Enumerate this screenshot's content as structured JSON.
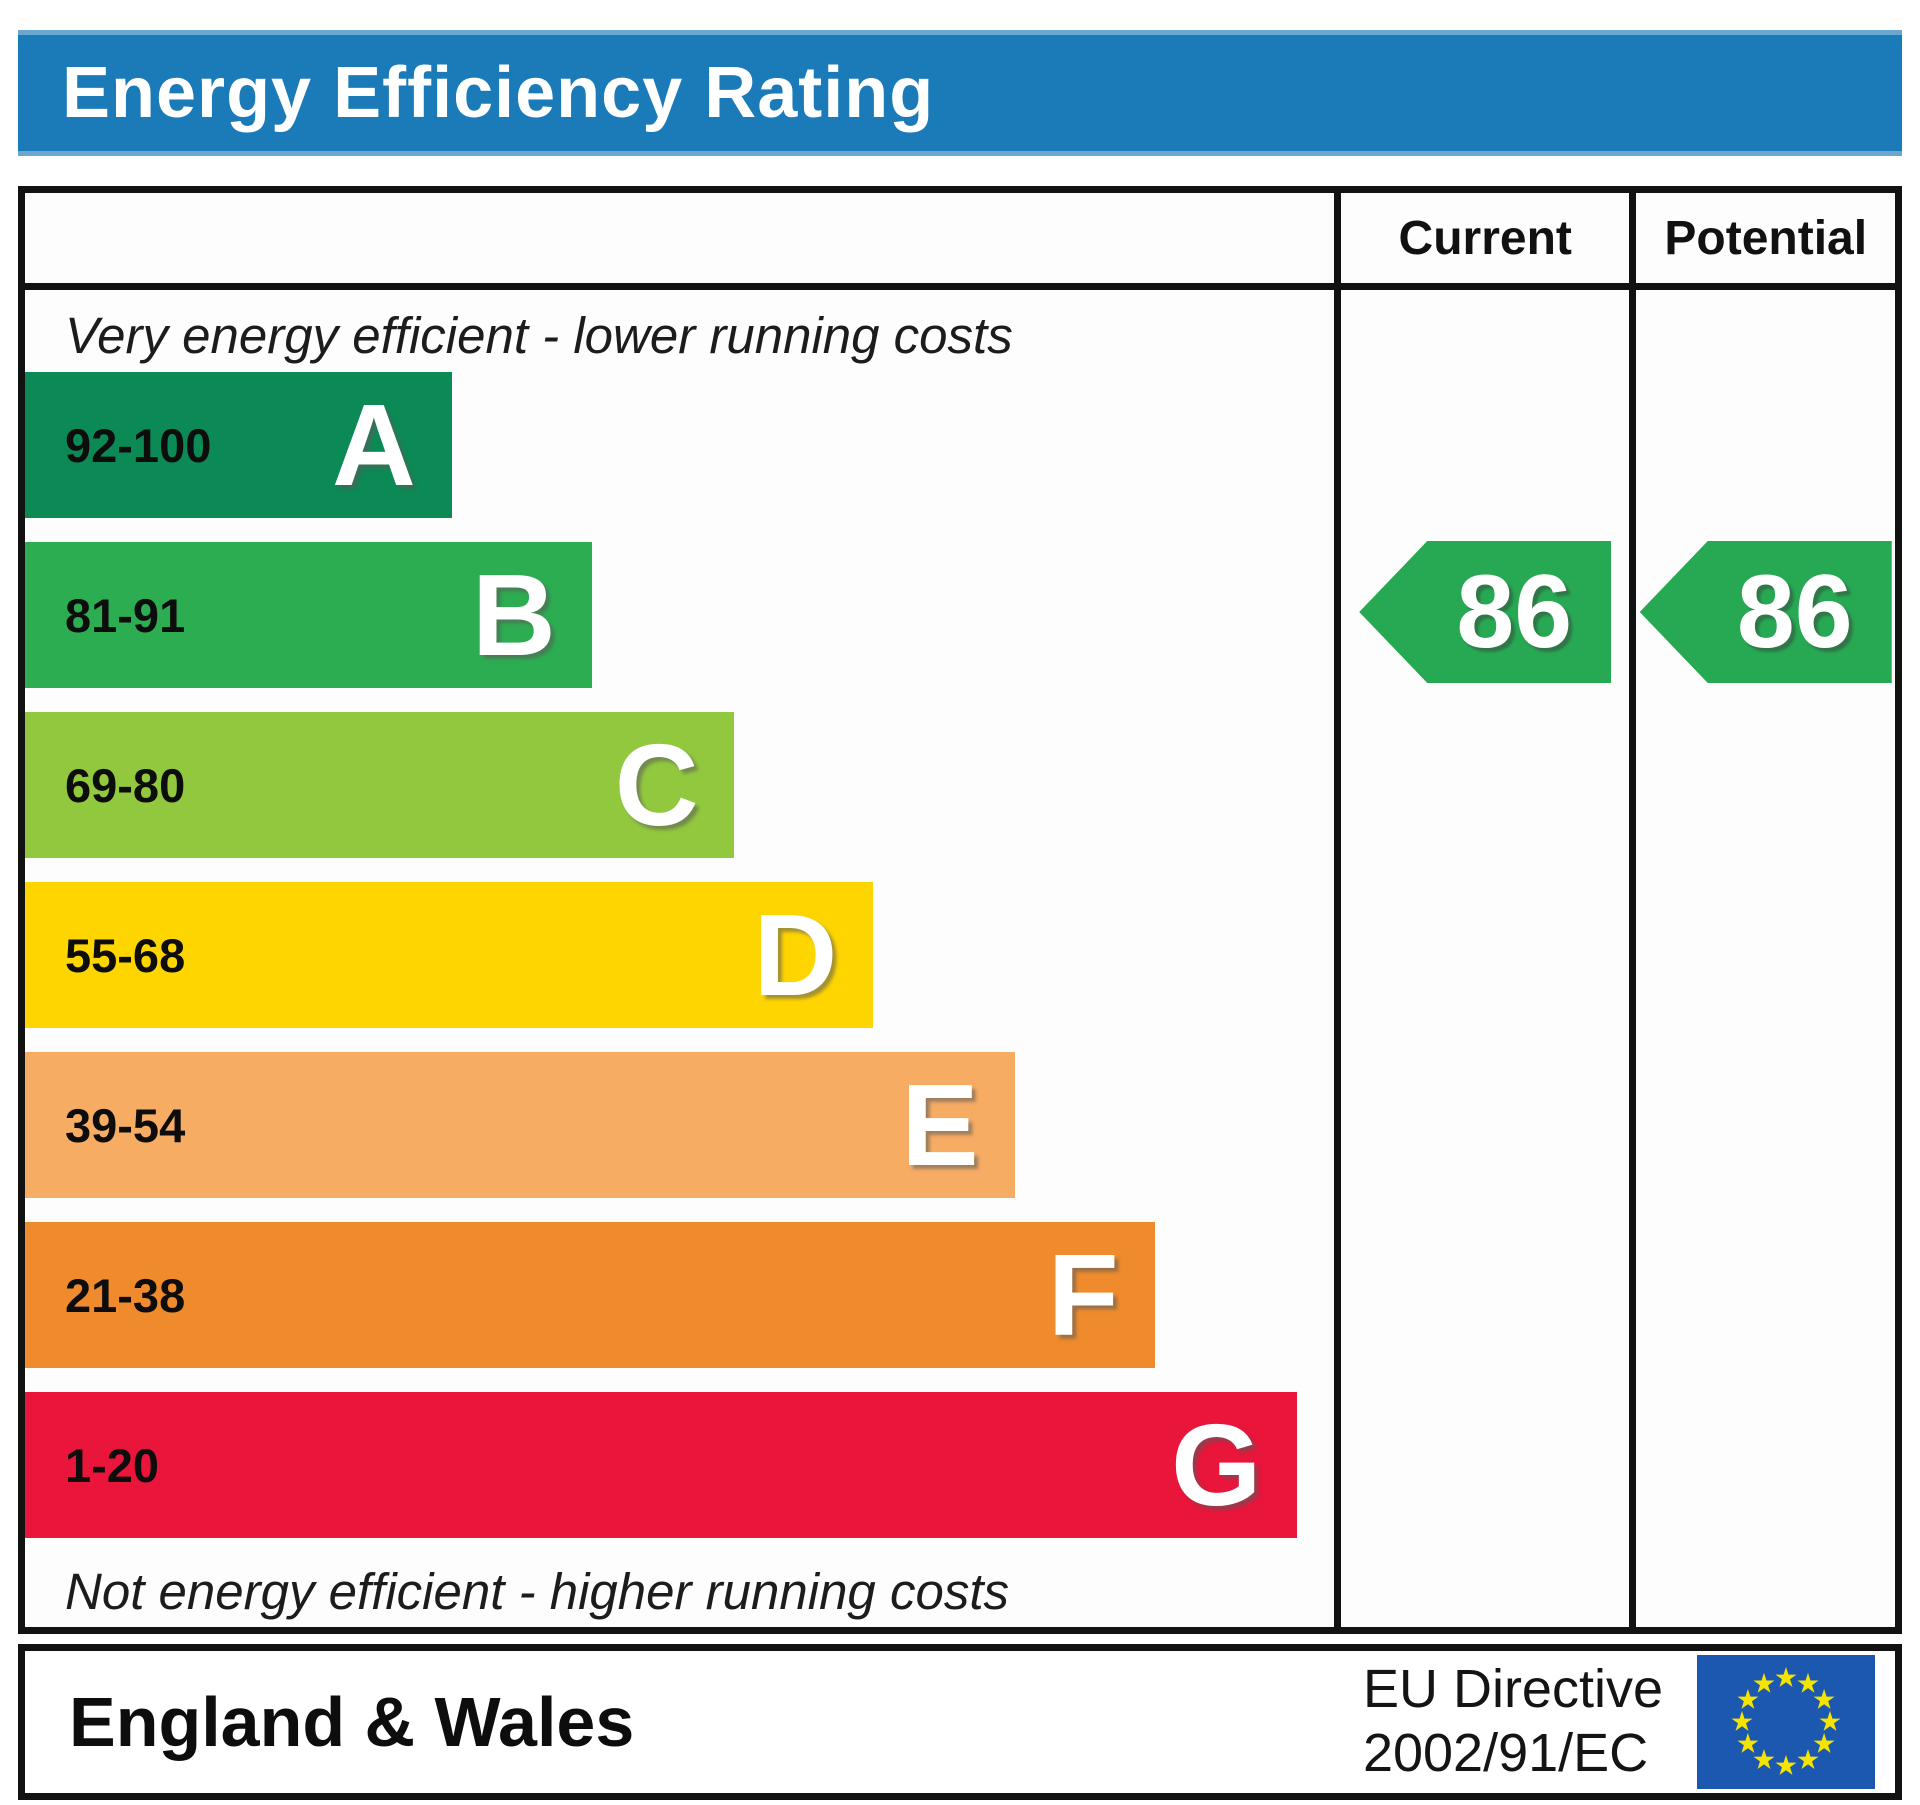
{
  "title": "Energy Efficiency Rating",
  "colors": {
    "title_bar": "#1b7ab8",
    "border": "#121212",
    "rating_arrow_green": "#27a853",
    "flag_blue": "#1d58b0",
    "flag_star_yellow": "#f5e400"
  },
  "columns": {
    "current_label": "Current",
    "potential_label": "Potential"
  },
  "scale_notes": {
    "top": "Very energy efficient - lower running costs",
    "bottom": "Not energy efficient - higher running costs"
  },
  "bands": [
    {
      "letter": "A",
      "range": "92-100",
      "color": "#0c8a55",
      "width_pct": 32.6
    },
    {
      "letter": "B",
      "range": "81-91",
      "color": "#2dad52",
      "width_pct": 43.3
    },
    {
      "letter": "C",
      "range": "69-80",
      "color": "#92c83e",
      "width_pct": 54.2
    },
    {
      "letter": "D",
      "range": "55-68",
      "color": "#ffd500",
      "width_pct": 64.8
    },
    {
      "letter": "E",
      "range": "39-54",
      "color": "#f7ac63",
      "width_pct": 75.6
    },
    {
      "letter": "F",
      "range": "21-38",
      "color": "#ef8b2c",
      "width_pct": 86.3
    },
    {
      "letter": "G",
      "range": "1-20",
      "color": "#e9153b",
      "width_pct": 97.2
    }
  ],
  "ratings": {
    "current": {
      "value": "86",
      "band": "B",
      "color": "#27a853"
    },
    "potential": {
      "value": "86",
      "band": "B",
      "color": "#27a853"
    }
  },
  "footer": {
    "region": "England & Wales",
    "directive_line1": "EU Directive",
    "directive_line2": "2002/91/EC"
  },
  "chart_data": {
    "type": "bar",
    "title": "Energy Efficiency Rating",
    "orientation": "horizontal",
    "categories": [
      "A",
      "B",
      "C",
      "D",
      "E",
      "F",
      "G"
    ],
    "band_score_ranges": [
      "92-100",
      "81-91",
      "69-80",
      "55-68",
      "39-54",
      "21-38",
      "1-20"
    ],
    "band_colors": [
      "#0c8a55",
      "#2dad52",
      "#92c83e",
      "#ffd500",
      "#f7ac63",
      "#ef8b2c",
      "#e9153b"
    ],
    "bar_lengths_pct": [
      32.6,
      43.3,
      54.2,
      64.8,
      75.6,
      86.3,
      97.2
    ],
    "series": [
      {
        "name": "Current",
        "value": 86,
        "band": "B"
      },
      {
        "name": "Potential",
        "value": 86,
        "band": "B"
      }
    ],
    "annotations": [
      "Very energy efficient - lower running costs",
      "Not energy efficient - higher running costs"
    ],
    "footer_left": "England & Wales",
    "footer_right": "EU Directive 2002/91/EC",
    "legend_position": "none",
    "grid": false
  }
}
